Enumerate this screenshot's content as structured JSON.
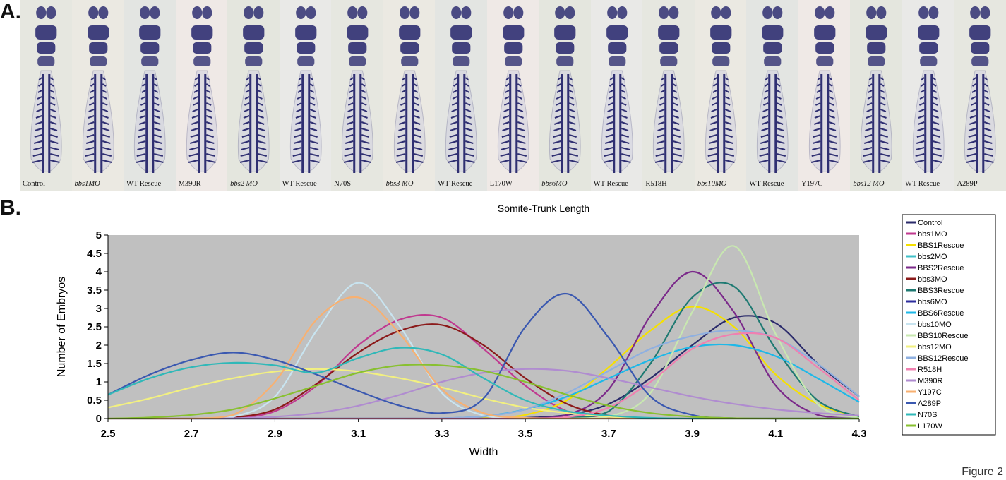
{
  "panels": {
    "a_label": "A.",
    "b_label": "B."
  },
  "embryo_images": [
    {
      "label": "Control",
      "italic": false
    },
    {
      "label": "bbs1MO",
      "italic": true
    },
    {
      "label": "WT Rescue",
      "italic": false
    },
    {
      "label": "M390R",
      "italic": false
    },
    {
      "label": "bbs2 MO",
      "italic": true
    },
    {
      "label": "WT Rescue",
      "italic": false
    },
    {
      "label": "N70S",
      "italic": false
    },
    {
      "label": "bbs3 MO",
      "italic": true
    },
    {
      "label": "WT Rescue",
      "italic": false
    },
    {
      "label": "L170W",
      "italic": false
    },
    {
      "label": "bbs6MO",
      "italic": true
    },
    {
      "label": "WT Rescue",
      "italic": false
    },
    {
      "label": "R518H",
      "italic": false
    },
    {
      "label": "bbs10MO",
      "italic": true
    },
    {
      "label": "WT Rescue",
      "italic": false
    },
    {
      "label": "Y197C",
      "italic": false
    },
    {
      "label": "bbs12 MO",
      "italic": true
    },
    {
      "label": "WT Rescue",
      "italic": false
    },
    {
      "label": "A289P",
      "italic": false
    }
  ],
  "figure_label": "Figure 2",
  "chart_data": {
    "type": "line",
    "title": "Somite-Trunk Length",
    "xlabel": "Width",
    "ylabel": "Number of Embryos",
    "xlim": [
      2.5,
      4.3
    ],
    "ylim": [
      0,
      5
    ],
    "xticks": [
      "2.5",
      "2.7",
      "2.9",
      "3.1",
      "3.3",
      "3.5",
      "3.7",
      "3.9",
      "4.1",
      "4.3"
    ],
    "yticks": [
      "0",
      "0.5",
      "1",
      "1.5",
      "2",
      "2.5",
      "3",
      "3.5",
      "4",
      "4.5",
      "5"
    ],
    "grid": false,
    "plot_background": "#c0c0c0",
    "legend_position": "right",
    "x": [
      2.5,
      2.6,
      2.7,
      2.8,
      2.9,
      3.0,
      3.1,
      3.2,
      3.3,
      3.4,
      3.5,
      3.6,
      3.7,
      3.8,
      3.9,
      4.0,
      4.1,
      4.2,
      4.3
    ],
    "series": [
      {
        "name": "Control",
        "color": "#2b2b6b",
        "values": [
          0,
          0,
          0,
          0,
          0,
          0,
          0,
          0,
          0,
          0,
          0.02,
          0.1,
          0.4,
          1.1,
          2.0,
          2.75,
          2.6,
          1.5,
          0.6
        ]
      },
      {
        "name": "bbs1MO",
        "color": "#c0398f",
        "values": [
          0,
          0,
          0,
          0.02,
          0.2,
          0.9,
          2.0,
          2.7,
          2.75,
          1.9,
          0.9,
          0.2,
          0.03,
          0,
          0,
          0,
          0,
          0,
          0
        ]
      },
      {
        "name": "BBS1Rescue",
        "color": "#f5e000",
        "values": [
          0,
          0,
          0,
          0,
          0,
          0,
          0,
          0,
          0,
          0.02,
          0.1,
          0.5,
          1.4,
          2.4,
          3.05,
          2.5,
          1.2,
          0.4,
          0.05
        ]
      },
      {
        "name": "bbs2MO",
        "color": "#40c0c8",
        "values": [
          0,
          0,
          0,
          0,
          0,
          0,
          0,
          0,
          0,
          0,
          0,
          0,
          0,
          0,
          0,
          0,
          0,
          0,
          0
        ]
      },
      {
        "name": "BBS2Rescue",
        "color": "#7b2a8a",
        "values": [
          0,
          0,
          0,
          0,
          0,
          0,
          0,
          0,
          0,
          0,
          0.01,
          0.1,
          0.8,
          2.8,
          4.0,
          2.9,
          0.9,
          0.1,
          0
        ]
      },
      {
        "name": "bbs3MO",
        "color": "#8b1a1a",
        "values": [
          0,
          0,
          0,
          0.03,
          0.25,
          0.95,
          1.8,
          2.4,
          2.55,
          2.0,
          1.1,
          0.4,
          0.08,
          0.01,
          0,
          0,
          0,
          0,
          0
        ]
      },
      {
        "name": "BBS3Rescue",
        "color": "#1f7a72",
        "values": [
          0,
          0,
          0,
          0,
          0,
          0,
          0,
          0,
          0,
          0,
          0,
          0.02,
          0.2,
          1.5,
          3.3,
          3.6,
          1.9,
          0.5,
          0.05
        ]
      },
      {
        "name": "bbs6MO",
        "color": "#2e2e9e",
        "values": [
          0,
          0,
          0,
          0,
          0,
          0,
          0,
          0,
          0,
          0,
          0,
          0,
          0,
          0,
          0,
          0,
          0,
          0,
          0
        ]
      },
      {
        "name": "BBS6Rescue",
        "color": "#1eb8e8",
        "values": [
          0,
          0,
          0,
          0,
          0,
          0,
          0,
          0,
          0.01,
          0.06,
          0.25,
          0.6,
          1.1,
          1.6,
          1.95,
          2.0,
          1.7,
          1.1,
          0.45
        ]
      },
      {
        "name": "bbs10MO",
        "color": "#c8e4f0",
        "values": [
          0,
          0,
          0,
          0.05,
          0.6,
          2.4,
          3.7,
          2.5,
          0.7,
          0.08,
          0,
          0,
          0,
          0,
          0,
          0,
          0,
          0,
          0
        ]
      },
      {
        "name": "BBS10Rescue",
        "color": "#c8e8b0",
        "values": [
          0,
          0,
          0,
          0,
          0,
          0,
          0,
          0,
          0,
          0,
          0,
          0,
          0.05,
          0.7,
          2.9,
          4.7,
          2.3,
          0.4,
          0.02
        ]
      },
      {
        "name": "bbs12MO",
        "color": "#f2f080",
        "values": [
          0.3,
          0.55,
          0.85,
          1.1,
          1.28,
          1.35,
          1.28,
          1.1,
          0.85,
          0.55,
          0.3,
          0.15,
          0.05,
          0.01,
          0,
          0,
          0,
          0,
          0
        ]
      },
      {
        "name": "BBS12Rescue",
        "color": "#8fb0e0",
        "values": [
          0,
          0,
          0,
          0,
          0,
          0,
          0,
          0,
          0.01,
          0.06,
          0.25,
          0.7,
          1.3,
          1.9,
          2.25,
          2.4,
          2.2,
          1.5,
          0.6
        ]
      },
      {
        "name": "R518H",
        "color": "#f080b0",
        "values": [
          0,
          0,
          0,
          0,
          0,
          0,
          0,
          0,
          0,
          0,
          0,
          0.04,
          0.3,
          1.0,
          1.9,
          2.3,
          2.2,
          1.4,
          0.5
        ]
      },
      {
        "name": "M390R",
        "color": "#b08cd0",
        "values": [
          0,
          0,
          0,
          0.01,
          0.05,
          0.15,
          0.35,
          0.65,
          1.0,
          1.25,
          1.35,
          1.3,
          1.1,
          0.85,
          0.6,
          0.4,
          0.25,
          0.15,
          0.08
        ]
      },
      {
        "name": "Y197C",
        "color": "#f8b070",
        "values": [
          0,
          0,
          0,
          0.1,
          1.0,
          2.7,
          3.3,
          2.3,
          0.8,
          0.15,
          0.02,
          0,
          0,
          0,
          0,
          0,
          0,
          0,
          0
        ]
      },
      {
        "name": "A289P",
        "color": "#3a58b0",
        "values": [
          0.65,
          1.2,
          1.6,
          1.8,
          1.6,
          1.2,
          0.75,
          0.35,
          0.15,
          0.55,
          2.5,
          3.4,
          2.2,
          0.6,
          0.1,
          0.01,
          0,
          0,
          0
        ]
      },
      {
        "name": "N70S",
        "color": "#30b8b8",
        "values": [
          0.65,
          1.1,
          1.4,
          1.52,
          1.45,
          1.25,
          1.65,
          1.93,
          1.75,
          1.1,
          0.5,
          0.2,
          0.08,
          0.02,
          0,
          0,
          0,
          0,
          0
        ]
      },
      {
        "name": "L170W",
        "color": "#88c030",
        "values": [
          0,
          0.03,
          0.1,
          0.25,
          0.55,
          0.9,
          1.25,
          1.45,
          1.45,
          1.3,
          1.0,
          0.65,
          0.35,
          0.15,
          0.05,
          0.01,
          0,
          0,
          0
        ]
      }
    ]
  }
}
